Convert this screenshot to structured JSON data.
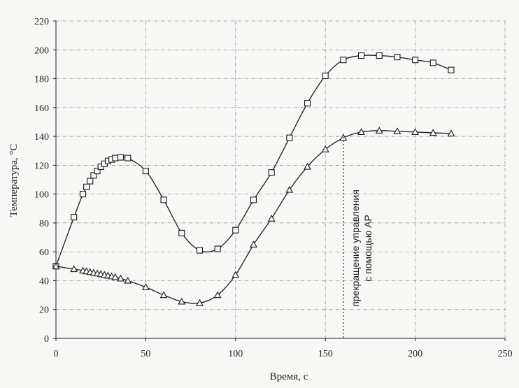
{
  "chart_data": {
    "type": "line",
    "xlabel": "Время, с",
    "ylabel": "Температура, °С",
    "xlim": [
      0,
      250
    ],
    "ylim": [
      0,
      220
    ],
    "xticks": [
      0,
      50,
      100,
      150,
      200,
      250
    ],
    "yticks": [
      0,
      20,
      40,
      60,
      80,
      100,
      120,
      140,
      160,
      180,
      200,
      220
    ],
    "grid": true,
    "series": [
      {
        "marker": "square",
        "x": [
          0,
          10,
          15,
          17,
          19,
          21,
          23,
          25,
          27,
          29,
          31,
          33,
          36,
          40,
          50,
          60,
          70,
          80,
          90,
          100,
          110,
          120,
          130,
          140,
          150,
          160,
          170,
          180,
          190,
          200,
          210,
          220
        ],
        "y": [
          50,
          84,
          100,
          105,
          109,
          113,
          116,
          119,
          121,
          123,
          124,
          125,
          125.5,
          125,
          116,
          96,
          73,
          61,
          62,
          75,
          96,
          115,
          139,
          163,
          182,
          193,
          196,
          196,
          195,
          193,
          191,
          186
        ]
      },
      {
        "marker": "triangle",
        "x": [
          0,
          10,
          15,
          17,
          19,
          21,
          23,
          25,
          27,
          29,
          31,
          33,
          36,
          40,
          50,
          60,
          70,
          80,
          90,
          100,
          110,
          120,
          130,
          140,
          150,
          160,
          170,
          180,
          190,
          200,
          210,
          220
        ],
        "y": [
          50,
          48,
          47,
          46.5,
          46,
          45.5,
          45,
          44.5,
          44,
          43.5,
          43,
          42.5,
          41.5,
          40,
          35.5,
          30,
          25.5,
          24.5,
          30,
          44,
          65,
          83,
          103,
          119,
          131,
          139,
          143,
          144,
          143.5,
          143,
          142.5,
          142
        ]
      }
    ],
    "annotation": {
      "x": 160,
      "line1": "прекращение управления",
      "line2": "с помощью АР"
    }
  }
}
